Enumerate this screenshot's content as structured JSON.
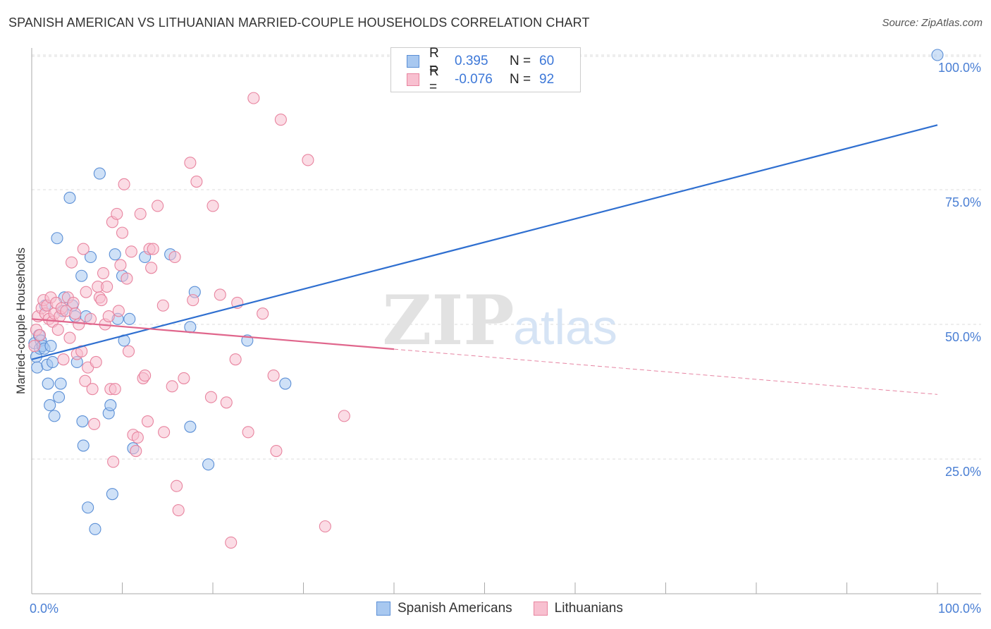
{
  "title": "SPANISH AMERICAN VS LITHUANIAN MARRIED-COUPLE HOUSEHOLDS CORRELATION CHART",
  "source": "Source: ZipAtlas.com",
  "watermark": {
    "zip": "ZIP",
    "atlas": "atlas"
  },
  "legend": {
    "rows": [
      {
        "r_label": "R =",
        "r_value": "0.395",
        "n_label": "N =",
        "n_value": "60",
        "color": "#a8c8f0",
        "border": "#5b8fd6"
      },
      {
        "r_label": "R =",
        "r_value": "-0.076",
        "n_label": "N =",
        "n_value": "92",
        "color": "#f8c0d0",
        "border": "#e8849f"
      }
    ]
  },
  "bottom_legend": [
    {
      "label": "Spanish Americans",
      "color": "#a8c8f0",
      "border": "#5b8fd6"
    },
    {
      "label": "Lithuanians",
      "color": "#f8c0d0",
      "border": "#e8849f"
    }
  ],
  "chart_data": {
    "type": "scatter",
    "title": "SPANISH AMERICAN VS LITHUANIAN MARRIED-COUPLE HOUSEHOLDS CORRELATION CHART",
    "xlabel": "",
    "ylabel": "Married-couple Households",
    "xlim": [
      0,
      100
    ],
    "ylim": [
      0,
      102
    ],
    "x_tick_labels": [
      "0.0%",
      "100.0%"
    ],
    "y_ticks": [
      25,
      50,
      75,
      100
    ],
    "y_tick_labels": [
      "25.0%",
      "50.0%",
      "75.0%",
      "100.0%"
    ],
    "grid": true,
    "series": [
      {
        "name": "Spanish Americans",
        "color": "#5b8fd6",
        "fill": "#a8c8f0",
        "line_color": "#2f6fd0",
        "trend": {
          "x": [
            0,
            100
          ],
          "y": [
            43.5,
            87.0
          ],
          "dashed_from": null
        },
        "points": [
          [
            0.3,
            46.5
          ],
          [
            0.5,
            44.0
          ],
          [
            0.6,
            42.0
          ],
          [
            0.8,
            48.0
          ],
          [
            0.9,
            45.5
          ],
          [
            1.0,
            47.0
          ],
          [
            1.2,
            46.0
          ],
          [
            1.4,
            45.5
          ],
          [
            1.5,
            53.5
          ],
          [
            1.7,
            42.5
          ],
          [
            1.8,
            39.0
          ],
          [
            2.0,
            35.0
          ],
          [
            2.1,
            46.0
          ],
          [
            2.3,
            43.0
          ],
          [
            2.5,
            33.0
          ],
          [
            2.8,
            66.0
          ],
          [
            3.0,
            36.5
          ],
          [
            3.2,
            39.0
          ],
          [
            3.4,
            52.5
          ],
          [
            3.6,
            55.0
          ],
          [
            4.2,
            73.5
          ],
          [
            4.5,
            53.5
          ],
          [
            4.8,
            51.5
          ],
          [
            5.0,
            43.0
          ],
          [
            5.5,
            59.0
          ],
          [
            5.6,
            32.0
          ],
          [
            5.7,
            27.5
          ],
          [
            6.0,
            51.5
          ],
          [
            6.2,
            16.0
          ],
          [
            6.5,
            62.5
          ],
          [
            7.0,
            12.0
          ],
          [
            7.5,
            78.0
          ],
          [
            8.5,
            33.5
          ],
          [
            8.7,
            35.0
          ],
          [
            8.9,
            18.5
          ],
          [
            9.2,
            63.0
          ],
          [
            9.5,
            51.0
          ],
          [
            10.0,
            59.0
          ],
          [
            10.2,
            47.0
          ],
          [
            10.8,
            51.0
          ],
          [
            11.2,
            27.0
          ],
          [
            12.5,
            62.5
          ],
          [
            15.3,
            63.0
          ],
          [
            17.5,
            49.5
          ],
          [
            17.5,
            31.0
          ],
          [
            18.0,
            56.0
          ],
          [
            19.5,
            24.0
          ],
          [
            23.8,
            47.0
          ],
          [
            28.0,
            39.0
          ],
          [
            100.0,
            100.0
          ]
        ]
      },
      {
        "name": "Lithuanians",
        "color": "#e8849f",
        "fill": "#f8c0d0",
        "line_color": "#e0668c",
        "trend": {
          "x": [
            0,
            100
          ],
          "y": [
            51.0,
            37.0
          ],
          "dashed_from": 40
        },
        "points": [
          [
            0.3,
            46.0
          ],
          [
            0.5,
            49.0
          ],
          [
            0.7,
            51.5
          ],
          [
            0.9,
            48.0
          ],
          [
            1.1,
            53.0
          ],
          [
            1.3,
            54.5
          ],
          [
            1.5,
            52.0
          ],
          [
            1.7,
            53.5
          ],
          [
            1.9,
            51.0
          ],
          [
            2.1,
            55.0
          ],
          [
            2.3,
            50.5
          ],
          [
            2.5,
            52.0
          ],
          [
            2.7,
            54.0
          ],
          [
            2.9,
            49.0
          ],
          [
            3.1,
            51.5
          ],
          [
            3.3,
            53.0
          ],
          [
            3.5,
            43.5
          ],
          [
            3.8,
            52.5
          ],
          [
            4.0,
            55.0
          ],
          [
            4.2,
            47.5
          ],
          [
            4.4,
            61.5
          ],
          [
            4.6,
            54.0
          ],
          [
            4.8,
            52.0
          ],
          [
            5.0,
            44.5
          ],
          [
            5.2,
            50.0
          ],
          [
            5.5,
            45.0
          ],
          [
            5.7,
            64.0
          ],
          [
            5.9,
            39.5
          ],
          [
            6.0,
            56.0
          ],
          [
            6.2,
            42.0
          ],
          [
            6.5,
            51.0
          ],
          [
            6.7,
            38.0
          ],
          [
            6.9,
            31.5
          ],
          [
            7.1,
            43.0
          ],
          [
            7.3,
            57.0
          ],
          [
            7.5,
            55.0
          ],
          [
            7.7,
            54.5
          ],
          [
            7.9,
            59.5
          ],
          [
            8.1,
            50.0
          ],
          [
            8.3,
            57.0
          ],
          [
            8.5,
            51.5
          ],
          [
            8.7,
            38.0
          ],
          [
            8.9,
            69.0
          ],
          [
            9.0,
            24.5
          ],
          [
            9.2,
            38.0
          ],
          [
            9.4,
            70.5
          ],
          [
            9.6,
            52.5
          ],
          [
            9.8,
            61.0
          ],
          [
            10.0,
            67.0
          ],
          [
            10.2,
            76.0
          ],
          [
            10.5,
            58.5
          ],
          [
            10.7,
            45.0
          ],
          [
            11.0,
            63.5
          ],
          [
            11.2,
            29.5
          ],
          [
            11.5,
            26.5
          ],
          [
            11.7,
            29.0
          ],
          [
            12.0,
            70.5
          ],
          [
            12.3,
            40.0
          ],
          [
            12.5,
            40.5
          ],
          [
            12.8,
            32.0
          ],
          [
            13.0,
            64.0
          ],
          [
            13.2,
            60.5
          ],
          [
            13.4,
            64.0
          ],
          [
            13.9,
            72.0
          ],
          [
            14.5,
            53.5
          ],
          [
            14.6,
            30.0
          ],
          [
            15.5,
            38.5
          ],
          [
            15.8,
            62.5
          ],
          [
            16.0,
            20.0
          ],
          [
            16.2,
            15.5
          ],
          [
            16.8,
            40.0
          ],
          [
            17.5,
            80.0
          ],
          [
            17.8,
            54.5
          ],
          [
            18.2,
            76.5
          ],
          [
            19.8,
            36.5
          ],
          [
            20.0,
            72.0
          ],
          [
            20.8,
            55.5
          ],
          [
            21.5,
            35.5
          ],
          [
            22.0,
            9.5
          ],
          [
            22.5,
            43.5
          ],
          [
            22.7,
            54.0
          ],
          [
            23.9,
            30.0
          ],
          [
            24.5,
            92.0
          ],
          [
            25.5,
            52.0
          ],
          [
            26.7,
            40.5
          ],
          [
            27.0,
            26.5
          ],
          [
            27.5,
            88.0
          ],
          [
            30.5,
            80.5
          ],
          [
            32.4,
            12.5
          ],
          [
            34.5,
            33.0
          ]
        ]
      }
    ]
  }
}
